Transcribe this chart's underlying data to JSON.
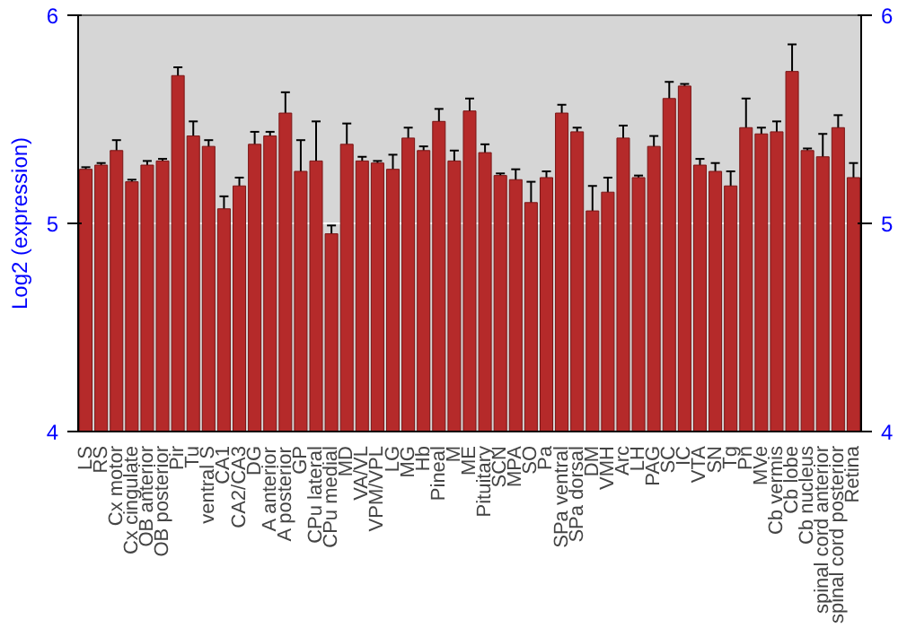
{
  "chart_data": {
    "type": "bar",
    "ylabel": "Log2 (expression)",
    "categories": [
      "LS",
      "RS",
      "Cx motor",
      "Cx cingulate",
      "OB anterior",
      "OB posterior",
      "Pir",
      "Tu",
      "ventral S",
      "CA1",
      "CA2/CA3",
      "DG",
      "A anterior",
      "A posterior",
      "GP",
      "CPu lateral",
      "CPu medial",
      "MD",
      "VA/VL",
      "VPM/VPL",
      "LG",
      "MG",
      "Hb",
      "Pineal",
      "M",
      "ME",
      "Pituitary",
      "SCN",
      "MPA",
      "SO",
      "Pa",
      "SPa ventral",
      "SPa dorsal",
      "DM",
      "VMH",
      "Arc",
      "LH",
      "PAG",
      "SC",
      "IC",
      "VTA",
      "SN",
      "Tg",
      "Pn",
      "MVe",
      "Cb vermis",
      "Cb lobe",
      "Cb nucleus",
      "spinal cord anterior",
      "spinal cord posterior",
      "Retina"
    ],
    "values": [
      5.26,
      5.28,
      5.35,
      5.2,
      5.28,
      5.3,
      5.71,
      5.42,
      5.37,
      5.07,
      5.18,
      5.38,
      5.42,
      5.53,
      5.25,
      5.3,
      4.95,
      5.38,
      5.3,
      5.29,
      5.26,
      5.41,
      5.35,
      5.49,
      5.3,
      5.54,
      5.34,
      5.23,
      5.21,
      5.1,
      5.22,
      5.53,
      5.44,
      5.06,
      5.15,
      5.41,
      5.22,
      5.37,
      5.6,
      5.66,
      5.28,
      5.25,
      5.18,
      5.46,
      5.43,
      5.44,
      5.73,
      5.35,
      5.32,
      5.46,
      5.22
    ],
    "errors": [
      0.01,
      0.01,
      0.05,
      0.01,
      0.02,
      0.01,
      0.04,
      0.07,
      0.03,
      0.06,
      0.04,
      0.06,
      0.02,
      0.1,
      0.15,
      0.19,
      0.04,
      0.1,
      0.02,
      0.01,
      0.07,
      0.05,
      0.02,
      0.06,
      0.05,
      0.06,
      0.04,
      0.01,
      0.05,
      0.1,
      0.03,
      0.04,
      0.02,
      0.12,
      0.07,
      0.06,
      0.01,
      0.05,
      0.08,
      0.01,
      0.03,
      0.04,
      0.07,
      0.14,
      0.03,
      0.05,
      0.13,
      0.01,
      0.11,
      0.06,
      0.07
    ],
    "color": "#b52a2a",
    "ylim": [
      4,
      6
    ],
    "yticks": [
      4,
      5,
      6
    ],
    "y2lim": [
      4,
      6
    ],
    "y2ticks": [
      4,
      5,
      6
    ],
    "grid": "y"
  }
}
